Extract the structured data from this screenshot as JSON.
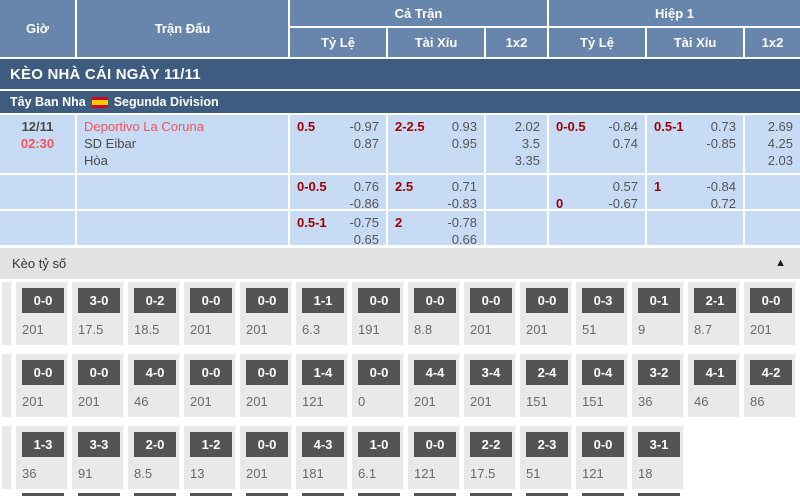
{
  "header": {
    "col_time": "Giờ",
    "col_match": "Trận Đấu",
    "group_full": "Cả Trận",
    "group_half": "Hiệp 1",
    "col_handicap": "Tỷ Lệ",
    "col_over_under": "Tài Xỉu",
    "col_1x2": "1x2"
  },
  "section": {
    "title": "KÈO NHÀ CÁI NGÀY 11/11"
  },
  "league": {
    "country": "Tây Ban Nha",
    "name": "Segunda Division",
    "flag_icon": "spain-flag"
  },
  "match": {
    "date": "12/11",
    "time": "02:30",
    "home": "Deportivo La Coruna",
    "away": "SD Eibar",
    "draw_label": "Hòa"
  },
  "odds_rows": [
    {
      "full_handicap": [
        {
          "label": "0.5",
          "value": "-0.97"
        },
        {
          "label": "",
          "value": "0.87"
        }
      ],
      "full_over_under": [
        {
          "label": "2-2.5",
          "value": "0.93"
        },
        {
          "label": "",
          "value": "0.95"
        }
      ],
      "full_1x2": [
        "2.02",
        "3.5",
        "3.35"
      ],
      "half_handicap": [
        {
          "label": "0-0.5",
          "value": "-0.84"
        },
        {
          "label": "",
          "value": "0.74"
        }
      ],
      "half_over_under": [
        {
          "label": "0.5-1",
          "value": "0.73"
        },
        {
          "label": "",
          "value": "-0.85"
        }
      ],
      "half_1x2": [
        "2.69",
        "4.25",
        "2.03"
      ]
    },
    {
      "full_handicap": [
        {
          "label": "0-0.5",
          "value": "0.76"
        },
        {
          "label": "",
          "value": "-0.86"
        }
      ],
      "full_over_under": [
        {
          "label": "2.5",
          "value": "0.71"
        },
        {
          "label": "",
          "value": "-0.83"
        }
      ],
      "full_1x2": [],
      "half_handicap": [
        {
          "label": "",
          "value": "0.57"
        },
        {
          "label": "0",
          "value": "-0.67"
        }
      ],
      "half_over_under": [
        {
          "label": "1",
          "value": "-0.84"
        },
        {
          "label": "",
          "value": "0.72"
        }
      ],
      "half_1x2": []
    },
    {
      "full_handicap": [
        {
          "label": "0.5-1",
          "value": "-0.75"
        },
        {
          "label": "",
          "value": "0.65"
        }
      ],
      "full_over_under": [
        {
          "label": "2",
          "value": "-0.78"
        },
        {
          "label": "",
          "value": "0.66"
        }
      ],
      "full_1x2": [],
      "half_handicap": [],
      "half_over_under": [],
      "half_1x2": []
    }
  ],
  "score_section": {
    "title": "Kèo tỷ số",
    "collapse_icon": "caret-up",
    "rows": [
      [
        {
          "score": "0-0",
          "odds": "201"
        },
        {
          "score": "3-0",
          "odds": "17.5"
        },
        {
          "score": "0-2",
          "odds": "18.5"
        },
        {
          "score": "0-0",
          "odds": "201"
        },
        {
          "score": "0-0",
          "odds": "201"
        },
        {
          "score": "1-1",
          "odds": "6.3"
        },
        {
          "score": "0-0",
          "odds": "191"
        },
        {
          "score": "0-0",
          "odds": "8.8"
        },
        {
          "score": "0-0",
          "odds": "201"
        },
        {
          "score": "0-0",
          "odds": "201"
        },
        {
          "score": "0-3",
          "odds": "51"
        },
        {
          "score": "0-1",
          "odds": "9"
        },
        {
          "score": "2-1",
          "odds": "8.7"
        },
        {
          "score": "0-0",
          "odds": "201"
        }
      ],
      [
        {
          "score": "0-0",
          "odds": "201"
        },
        {
          "score": "0-0",
          "odds": "201"
        },
        {
          "score": "4-0",
          "odds": "46"
        },
        {
          "score": "0-0",
          "odds": "201"
        },
        {
          "score": "0-0",
          "odds": "201"
        },
        {
          "score": "1-4",
          "odds": "121"
        },
        {
          "score": "0-0",
          "odds": "0"
        },
        {
          "score": "4-4",
          "odds": "201"
        },
        {
          "score": "3-4",
          "odds": "201"
        },
        {
          "score": "2-4",
          "odds": "151"
        },
        {
          "score": "0-4",
          "odds": "151"
        },
        {
          "score": "3-2",
          "odds": "36"
        },
        {
          "score": "4-1",
          "odds": "46"
        },
        {
          "score": "4-2",
          "odds": "86"
        }
      ],
      [
        {
          "score": "1-3",
          "odds": "36"
        },
        {
          "score": "3-3",
          "odds": "91"
        },
        {
          "score": "2-0",
          "odds": "8.5"
        },
        {
          "score": "1-2",
          "odds": "13"
        },
        {
          "score": "0-0",
          "odds": "201"
        },
        {
          "score": "4-3",
          "odds": "181"
        },
        {
          "score": "1-0",
          "odds": "6.1"
        },
        {
          "score": "0-0",
          "odds": "121"
        },
        {
          "score": "2-2",
          "odds": "17.5"
        },
        {
          "score": "2-3",
          "odds": "51"
        },
        {
          "score": "0-0",
          "odds": "121"
        },
        {
          "score": "3-1",
          "odds": "18"
        }
      ]
    ],
    "cropped_next_row_chips": 12
  },
  "colors": {
    "header_bg": "#6885ab",
    "band_bg": "#3e5c80",
    "row_bg": "#c8dbf4",
    "handicap_label": "#9c0000",
    "highlight_red": "#f0545c",
    "score_chip_bg": "#545454",
    "score_bar_bg": "#e2e2e2",
    "flag_red": "#c60b1e",
    "flag_yellow": "#ffc400"
  }
}
